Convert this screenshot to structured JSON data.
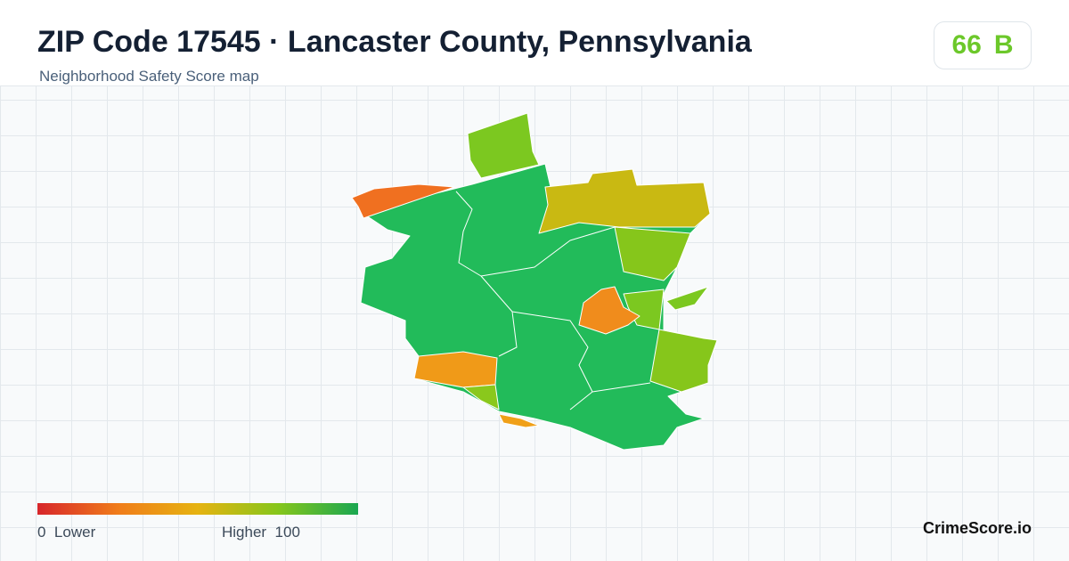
{
  "header": {
    "title": "ZIP Code 17545 · Lancaster County, Pennsylvania",
    "subtitle": "Neighborhood Safety Score map"
  },
  "score": {
    "value": 66,
    "grade": "B"
  },
  "legend": {
    "min": 0,
    "min_label": "Lower",
    "max_label": "Higher",
    "max": 100
  },
  "footer": {
    "brand": "CrimeScore.io"
  }
}
